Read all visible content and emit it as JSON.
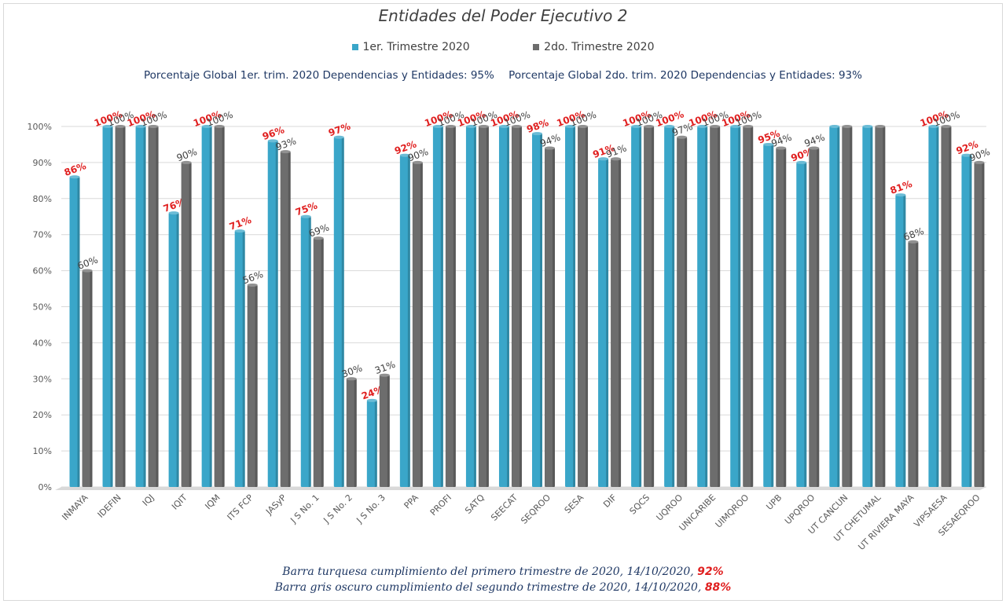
{
  "chart_data": {
    "type": "bar",
    "title": "Entidades del Poder Ejecutivo 2",
    "subtitle_parts": [
      "Porcentaje Global 1er. trim. 2020 Dependencias y Entidades: 95%",
      "Porcentaje Global  2do. trim. 2020 Dependencias y Entidades: 93%"
    ],
    "categories": [
      "INMAYA",
      "IDEFIN",
      "IQJ",
      "IQIT",
      "IQM",
      "ITS FCP",
      "JASyP",
      "J S No. 1",
      "J S No. 2",
      "J S No. 3",
      "PPA",
      "PROFI",
      "SATQ",
      "SEECAT",
      "SEQROO",
      "SESA",
      "DIF",
      "SQCS",
      "UQROO",
      "UNICARIBE",
      "UIMQROO",
      "UPB",
      "UPQROO",
      "UT CANCUN",
      "UT CHETUMAL",
      "UT RIVIERA MAYA",
      "VIPSAESA",
      "SESAEQROO"
    ],
    "series": [
      {
        "name": "1er. Trimestre 2020",
        "color": "#3aa6c9",
        "label_color": "#e02020",
        "values": [
          86,
          100,
          100,
          76,
          100,
          71,
          96,
          75,
          97,
          24,
          92,
          100,
          100,
          100,
          98,
          100,
          91,
          100,
          100,
          100,
          100,
          95,
          90,
          100,
          100,
          81,
          100,
          92
        ],
        "labels": [
          "86%",
          "100%",
          "100%",
          "76%",
          "100%",
          "71%",
          "96%",
          "75%",
          "97%",
          "24%",
          "92%",
          "100%",
          "100%",
          "100%",
          "98%",
          "100%",
          "91%",
          "100%",
          "100%",
          "100%",
          "100%",
          "95%",
          "90%",
          "",
          "",
          "81%",
          "100%",
          "92%"
        ]
      },
      {
        "name": "2do. Trimestre 2020",
        "color": "#6d6d6d",
        "label_color": "#404040",
        "values": [
          60,
          100,
          100,
          90,
          100,
          56,
          93,
          69,
          30,
          31,
          90,
          100,
          100,
          100,
          94,
          100,
          91,
          100,
          97,
          100,
          100,
          94,
          94,
          100,
          100,
          68,
          100,
          90
        ],
        "labels": [
          "60%",
          "100%",
          "100%",
          "90%",
          "100%",
          "56%",
          "93%",
          "69%",
          "30%",
          "31%",
          "90%",
          "100%",
          "100%",
          "100%",
          "94%",
          "100%",
          "91%",
          "100%",
          "97%",
          "100%",
          "100%",
          "94%",
          "94%",
          "",
          "",
          "68%",
          "100%",
          "90%"
        ]
      }
    ],
    "y_ticks": [
      "0%",
      "10%",
      "20%",
      "30%",
      "40%",
      "50%",
      "60%",
      "70%",
      "80%",
      "90%",
      "100%"
    ],
    "ylim": [
      0,
      100
    ],
    "grid": true,
    "legend_position": "top"
  },
  "footer": {
    "line1_text": "Barra turquesa  cumplimiento  del primero trimestre  de  2020,  14/10/2020,",
    "line1_pct": "92%",
    "line2_text": "Barra  gris  oscuro  cumplimiento  del  segundo  trimestre  de  2020,  14/10/2020,",
    "line2_pct": "88%"
  }
}
